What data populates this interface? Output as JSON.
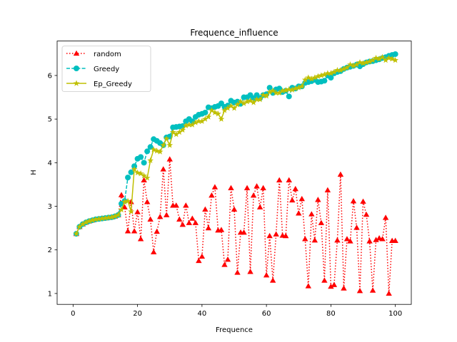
{
  "chart_data": {
    "type": "line",
    "title": "Frequence_influence",
    "xlabel": "Frequence",
    "ylabel": "H",
    "xlim": [
      -4.95,
      104.95
    ],
    "ylim": [
      0.75,
      6.79
    ],
    "xticks": [
      0,
      20,
      40,
      60,
      80,
      100
    ],
    "yticks": [
      1,
      2,
      3,
      4,
      5,
      6
    ],
    "grid": false,
    "legend": "top-left",
    "x": [
      1,
      2,
      3,
      4,
      5,
      6,
      7,
      8,
      9,
      10,
      11,
      12,
      13,
      14,
      15,
      16,
      17,
      18,
      19,
      20,
      21,
      22,
      23,
      24,
      25,
      26,
      27,
      28,
      29,
      30,
      31,
      32,
      33,
      34,
      35,
      36,
      37,
      38,
      39,
      40,
      41,
      42,
      43,
      44,
      45,
      46,
      47,
      48,
      49,
      50,
      51,
      52,
      53,
      54,
      55,
      56,
      57,
      58,
      59,
      60,
      61,
      62,
      63,
      64,
      65,
      66,
      67,
      68,
      69,
      70,
      71,
      72,
      73,
      74,
      75,
      76,
      77,
      78,
      79,
      80,
      81,
      82,
      83,
      84,
      85,
      86,
      87,
      88,
      89,
      90,
      91,
      92,
      93,
      94,
      95,
      96,
      97,
      98,
      99,
      100
    ],
    "series": [
      {
        "name": "random",
        "color": "#ff0000",
        "marker": "triangle",
        "linestyle": "dotted",
        "values": [
          2.37,
          2.53,
          2.59,
          2.63,
          2.66,
          2.68,
          2.7,
          2.71,
          2.72,
          2.73,
          2.74,
          2.75,
          2.77,
          2.8,
          3.26,
          2.98,
          2.43,
          3.1,
          2.43,
          2.87,
          2.25,
          3.6,
          3.1,
          2.7,
          1.95,
          2.42,
          2.76,
          3.85,
          2.8,
          4.08,
          3.02,
          3.02,
          2.7,
          2.58,
          3.02,
          2.62,
          2.72,
          2.62,
          1.75,
          1.85,
          2.93,
          2.5,
          3.25,
          3.44,
          2.45,
          2.46,
          1.66,
          1.78,
          3.42,
          2.93,
          1.48,
          2.4,
          2.4,
          3.42,
          1.5,
          3.25,
          3.46,
          2.98,
          3.42,
          1.42,
          2.32,
          1.3,
          2.36,
          3.6,
          2.33,
          2.32,
          3.6,
          3.14,
          3.4,
          2.84,
          3.17,
          2.25,
          1.17,
          2.82,
          2.22,
          3.15,
          2.62,
          1.3,
          3.37,
          1.16,
          1.2,
          2.22,
          3.73,
          1.12,
          2.25,
          2.2,
          3.12,
          2.51,
          1.06,
          3.11,
          2.81,
          2.2,
          1.07,
          2.23,
          2.27,
          2.25,
          2.74,
          1.0,
          2.21,
          2.21
        ]
      },
      {
        "name": "Greedy",
        "color": "#00bfbf",
        "marker": "circle",
        "linestyle": "dashed",
        "values": [
          2.37,
          2.53,
          2.59,
          2.63,
          2.66,
          2.68,
          2.7,
          2.71,
          2.72,
          2.73,
          2.74,
          2.75,
          2.77,
          2.8,
          3.06,
          3.12,
          3.66,
          3.78,
          3.92,
          4.09,
          4.13,
          4.0,
          4.26,
          4.36,
          4.54,
          4.5,
          4.45,
          4.4,
          4.58,
          4.6,
          4.81,
          4.82,
          4.83,
          4.84,
          4.95,
          5.0,
          4.95,
          5.05,
          5.1,
          5.12,
          5.15,
          5.27,
          5.25,
          5.28,
          5.3,
          5.36,
          5.28,
          5.31,
          5.42,
          5.38,
          5.4,
          5.35,
          5.5,
          5.5,
          5.55,
          5.48,
          5.55,
          5.48,
          5.55,
          5.57,
          5.72,
          5.6,
          5.68,
          5.7,
          5.62,
          5.65,
          5.52,
          5.72,
          5.7,
          5.75,
          5.75,
          5.83,
          5.85,
          5.87,
          5.9,
          5.85,
          5.86,
          5.88,
          6.0,
          5.95,
          6.05,
          6.08,
          6.1,
          6.15,
          6.18,
          6.2,
          6.22,
          6.25,
          6.21,
          6.26,
          6.3,
          6.32,
          6.33,
          6.35,
          6.37,
          6.4,
          6.42,
          6.45,
          6.47,
          6.49
        ]
      },
      {
        "name": "Ep_Greedy",
        "color": "#bfbf00",
        "marker": "star",
        "linestyle": "solid",
        "values": [
          2.37,
          2.53,
          2.59,
          2.63,
          2.66,
          2.68,
          2.7,
          2.71,
          2.72,
          2.73,
          2.74,
          2.75,
          2.77,
          2.8,
          2.92,
          3.1,
          3.12,
          2.88,
          3.85,
          3.77,
          3.75,
          3.7,
          3.65,
          4.05,
          4.3,
          4.27,
          4.25,
          4.4,
          4.55,
          4.4,
          4.7,
          4.65,
          4.7,
          4.75,
          4.85,
          4.87,
          4.87,
          4.92,
          4.95,
          4.95,
          5.0,
          5.05,
          5.2,
          5.15,
          5.12,
          5.0,
          5.2,
          5.25,
          5.3,
          5.25,
          5.33,
          5.4,
          5.36,
          5.4,
          5.42,
          5.38,
          5.45,
          5.45,
          5.55,
          5.53,
          5.62,
          5.65,
          5.6,
          5.6,
          5.65,
          5.66,
          5.68,
          5.67,
          5.7,
          5.72,
          5.75,
          5.9,
          5.95,
          5.92,
          5.95,
          5.98,
          6.0,
          6.02,
          6.05,
          6.05,
          6.08,
          6.12,
          6.12,
          6.15,
          6.18,
          6.25,
          6.22,
          6.25,
          6.3,
          6.28,
          6.3,
          6.32,
          6.35,
          6.4,
          6.38,
          6.42,
          6.35,
          6.4,
          6.38,
          6.35
        ]
      }
    ]
  }
}
